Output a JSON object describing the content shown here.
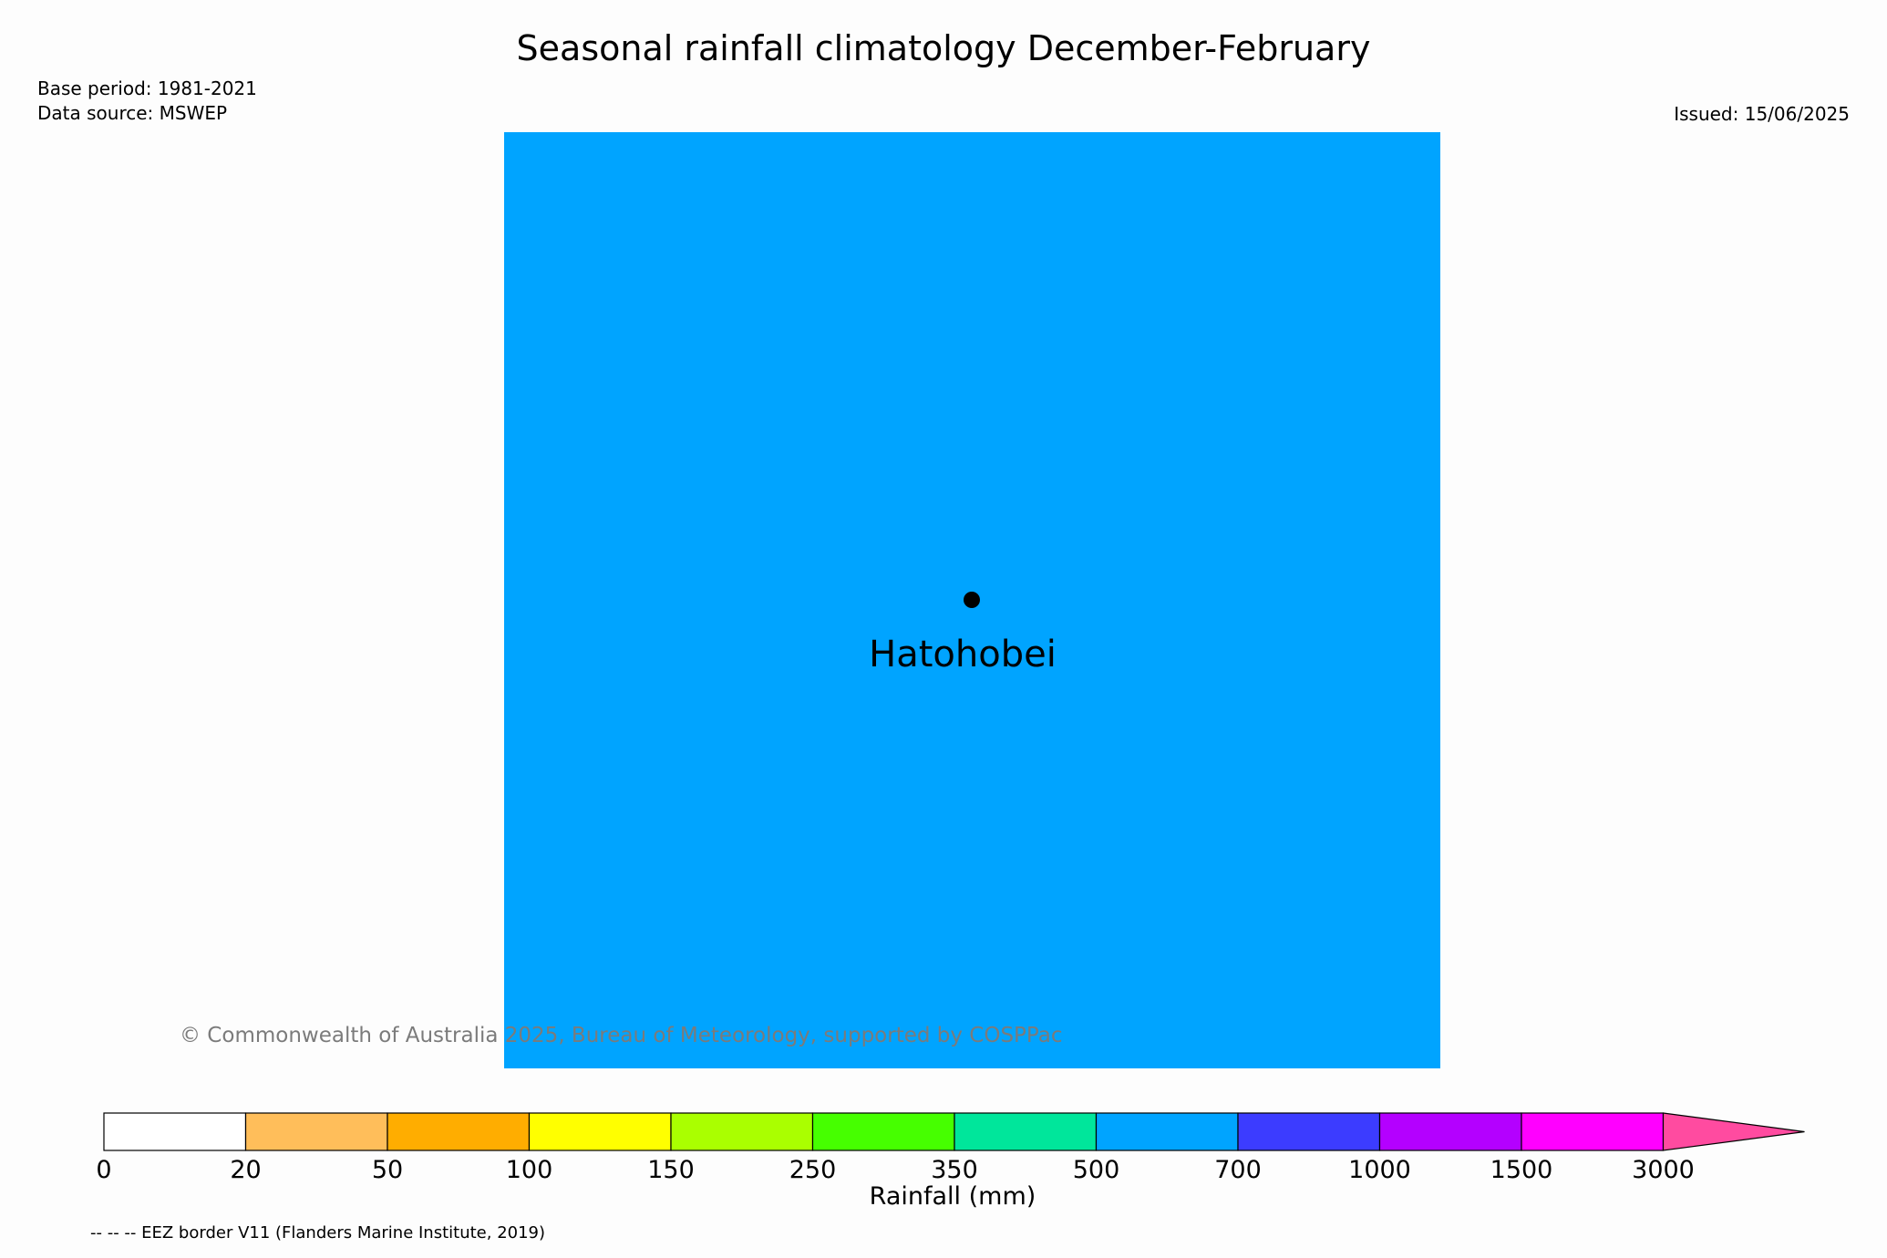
{
  "header": {
    "title": "Seasonal rainfall climatology December-February",
    "base_period": "Base period: 1981-2021",
    "data_source": "Data source: MSWEP",
    "issued": "Issued: 15/06/2025"
  },
  "map": {
    "fill_color": "#00a4ff",
    "place_name": "Hatohobei",
    "copyright": "© Commonwealth of Australia 2025, Bureau of Meteorology, supported by COSPPac"
  },
  "legend": {
    "label": "Rainfall (mm)",
    "ticks": [
      "0",
      "20",
      "50",
      "100",
      "150",
      "250",
      "350",
      "500",
      "700",
      "1000",
      "1500",
      "3000"
    ],
    "colors": [
      "#ffffff",
      "#ffbe5a",
      "#ffad00",
      "#ffff00",
      "#aaff00",
      "#46ff00",
      "#00e69b",
      "#00a4ff",
      "#3c3cff",
      "#b400ff",
      "#ff00ff"
    ],
    "extend_color": "#ff4ba0"
  },
  "footnote": "-- -- -- EEZ border V11 (Flanders Marine Institute, 2019)"
}
